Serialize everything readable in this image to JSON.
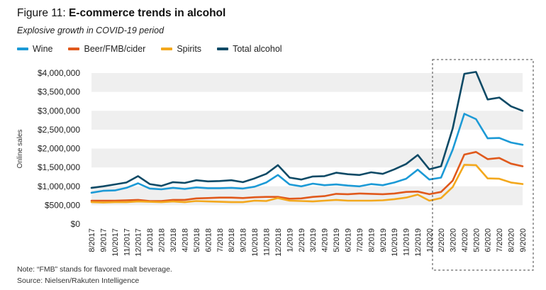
{
  "figure": {
    "label": "Figure 11:",
    "title": "E-commerce trends in alcohol",
    "subtitle": "Explosive growth in COVID-19 period",
    "note": "Note: “FMB” stands for flavored malt beverage.",
    "source": "Source: Nielsen/Rakuten Intelligence"
  },
  "chart_data": {
    "type": "line",
    "ylabel": "Online sales",
    "ylim": [
      0,
      4000000
    ],
    "yticks": [
      "$0",
      "$500,000",
      "$1,000,000",
      "$1,500,000",
      "$2,000,000",
      "$2,500,000",
      "$3,000,000",
      "$3,500,000",
      "$4,000,000"
    ],
    "grid": "alternating horizontal bands",
    "legend_position": "top-left",
    "highlight": "dashed box around 2/2020–9/2020",
    "categories": [
      "8/2017",
      "9/2017",
      "10/2017",
      "11/2017",
      "12/2017",
      "1/2018",
      "2/2018",
      "3/2018",
      "4/2018",
      "5/2018",
      "6/2018",
      "7/2018",
      "8/2018",
      "9/2018",
      "10/2018",
      "11/2018",
      "12/2018",
      "1/2019",
      "2/2019",
      "3/2019",
      "4/2019",
      "5/2019",
      "6/2019",
      "7/2019",
      "8/2019",
      "9/2019",
      "10/2019",
      "11/2019",
      "12/2019",
      "1/2020",
      "2/2020",
      "3/2020",
      "4/2020",
      "5/2020",
      "6/2020",
      "7/2020",
      "8/2020",
      "9/2020"
    ],
    "series": [
      {
        "name": "Wine",
        "color": "#1c9ad6",
        "values": [
          830000,
          880000,
          890000,
          960000,
          1080000,
          940000,
          920000,
          960000,
          930000,
          970000,
          950000,
          950000,
          960000,
          940000,
          990000,
          1100000,
          1300000,
          1050000,
          1000000,
          1070000,
          1030000,
          1050000,
          1020000,
          1000000,
          1060000,
          1030000,
          1100000,
          1200000,
          1440000,
          1180000,
          1230000,
          1970000,
          2920000,
          2780000,
          2270000,
          2280000,
          2160000,
          2100000
        ]
      },
      {
        "name": "Beer/FMB/cider",
        "color": "#e0591c",
        "values": [
          620000,
          620000,
          620000,
          630000,
          640000,
          610000,
          610000,
          640000,
          640000,
          680000,
          690000,
          700000,
          700000,
          690000,
          710000,
          720000,
          720000,
          670000,
          680000,
          720000,
          740000,
          800000,
          790000,
          810000,
          800000,
          790000,
          810000,
          850000,
          860000,
          790000,
          850000,
          1150000,
          1840000,
          1910000,
          1720000,
          1750000,
          1600000,
          1530000
        ]
      },
      {
        "name": "Spirits",
        "color": "#f3a81d",
        "values": [
          580000,
          570000,
          580000,
          580000,
          600000,
          590000,
          580000,
          600000,
          580000,
          610000,
          600000,
          590000,
          580000,
          580000,
          620000,
          610000,
          690000,
          620000,
          610000,
          600000,
          620000,
          640000,
          620000,
          620000,
          620000,
          630000,
          660000,
          700000,
          780000,
          620000,
          690000,
          980000,
          1570000,
          1560000,
          1210000,
          1200000,
          1100000,
          1060000
        ]
      },
      {
        "name": "Total alcohol",
        "color": "#0e4a66",
        "values": [
          960000,
          1000000,
          1050000,
          1100000,
          1270000,
          1060000,
          1010000,
          1110000,
          1090000,
          1160000,
          1130000,
          1140000,
          1160000,
          1110000,
          1210000,
          1330000,
          1560000,
          1230000,
          1180000,
          1260000,
          1270000,
          1360000,
          1320000,
          1300000,
          1370000,
          1330000,
          1450000,
          1590000,
          1830000,
          1450000,
          1530000,
          2530000,
          3980000,
          4030000,
          3300000,
          3350000,
          3120000,
          3000000
        ]
      }
    ]
  }
}
